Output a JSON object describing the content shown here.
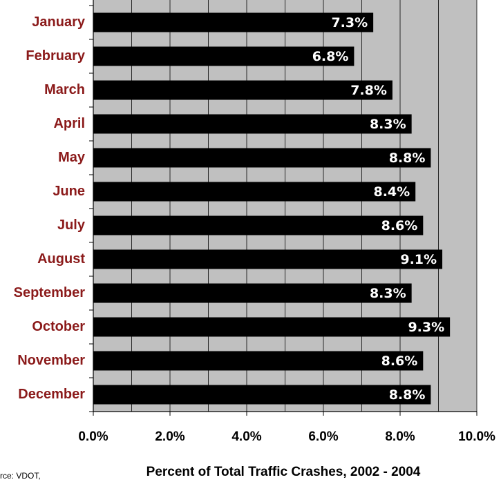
{
  "chart_data": {
    "type": "bar",
    "orientation": "horizontal",
    "categories": [
      "January",
      "February",
      "March",
      "April",
      "May",
      "June",
      "July",
      "August",
      "September",
      "October",
      "November",
      "December"
    ],
    "values": [
      7.3,
      6.8,
      7.8,
      8.3,
      8.8,
      8.4,
      8.6,
      9.1,
      8.3,
      9.3,
      8.6,
      8.8
    ],
    "value_labels": [
      "7.3%",
      "6.8%",
      "7.8%",
      "8.3%",
      "8.8%",
      "8.4%",
      "8.6%",
      "9.1%",
      "8.3%",
      "9.3%",
      "8.6%",
      "8.8%"
    ],
    "color": "#000000",
    "xlim": [
      0,
      10
    ],
    "xticks": [
      {
        "value": 0,
        "label": "0.0%"
      },
      {
        "value": 2,
        "label": "2.0%"
      },
      {
        "value": 4,
        "label": "4.0%"
      },
      {
        "value": 6,
        "label": "6.0%"
      },
      {
        "value": 8,
        "label": "8.0%"
      },
      {
        "value": 10,
        "label": "10.0%"
      }
    ],
    "xminorticks": [
      1,
      3,
      5,
      7,
      9
    ],
    "grid": true,
    "x_label": "Percent of Total Traffic Crashes, 2002 - 2004",
    "source": "rce:  VDOT,"
  }
}
